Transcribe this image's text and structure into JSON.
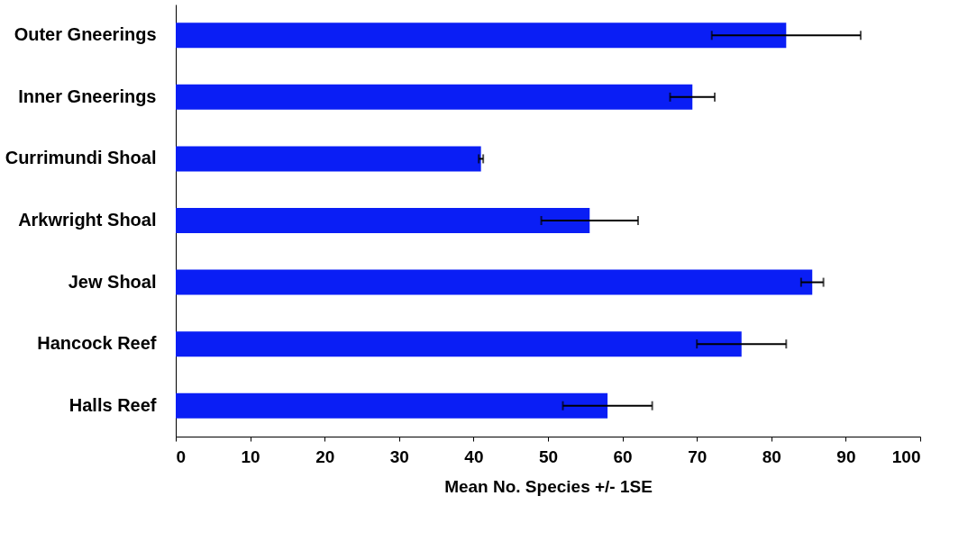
{
  "chart_data": {
    "type": "bar",
    "orientation": "horizontal",
    "xlabel": "Mean No. Species +/- 1SE",
    "categories": [
      "Outer Gneerings",
      "Inner Gneerings",
      "Currimundi Shoal",
      "Arkwright Shoal",
      "Jew Shoal",
      "Hancock Reef",
      "Halls Reef"
    ],
    "values": [
      82,
      69.4,
      41,
      55.6,
      85.5,
      76,
      58
    ],
    "errors": [
      10,
      3,
      0.3,
      6.5,
      1.5,
      6,
      6
    ],
    "color": "#0a1ef5",
    "xlim": [
      0,
      100
    ],
    "xticks": [
      0,
      10,
      20,
      30,
      40,
      50,
      60,
      70,
      80,
      90,
      100
    ],
    "grid": false
  }
}
